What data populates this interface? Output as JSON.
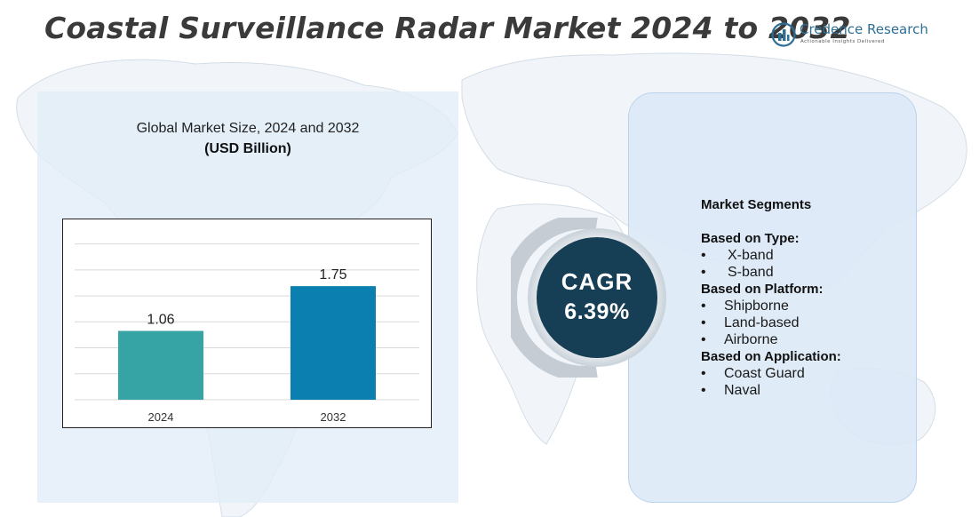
{
  "header": {
    "title": "Coastal Surveillance Radar Market 2024 to 2032"
  },
  "brand": {
    "name": "Credence Research",
    "tagline": "Actionable Insights Delivered"
  },
  "chart": {
    "title": "Global Market Size, 2024 and 2032",
    "subtitle": "(USD Billion)"
  },
  "chart_data": {
    "type": "bar",
    "categories": [
      "2024",
      "2032"
    ],
    "values": [
      1.06,
      1.75
    ],
    "data_labels": [
      "1.06",
      "1.75"
    ],
    "title": "Global Market Size, 2024 and 2032",
    "subtitle": "(USD Billion)",
    "xlabel": "",
    "ylabel": "",
    "ylim": [
      0,
      2.6
    ],
    "grid": true,
    "bar_colors": [
      "#36a3a4",
      "#0a7fb0"
    ]
  },
  "cagr": {
    "label": "CAGR",
    "value": "6.39%",
    "color": "#163e55"
  },
  "segments": {
    "heading": "Market Segments",
    "groups": [
      {
        "title": "Based on Type:",
        "items": [
          "X-band",
          "S-band"
        ]
      },
      {
        "title": "Based on Platform:",
        "items": [
          "Shipborne",
          "Land-based",
          "Airborne"
        ]
      },
      {
        "title": "Based on Application:",
        "items": [
          "Coast Guard",
          "Naval"
        ]
      }
    ]
  },
  "colors": {
    "panel_left": "#e2edf7",
    "panel_right": "#dbe9f6",
    "title_text": "#3a3a3a",
    "brand_blue": "#2d6f96"
  }
}
